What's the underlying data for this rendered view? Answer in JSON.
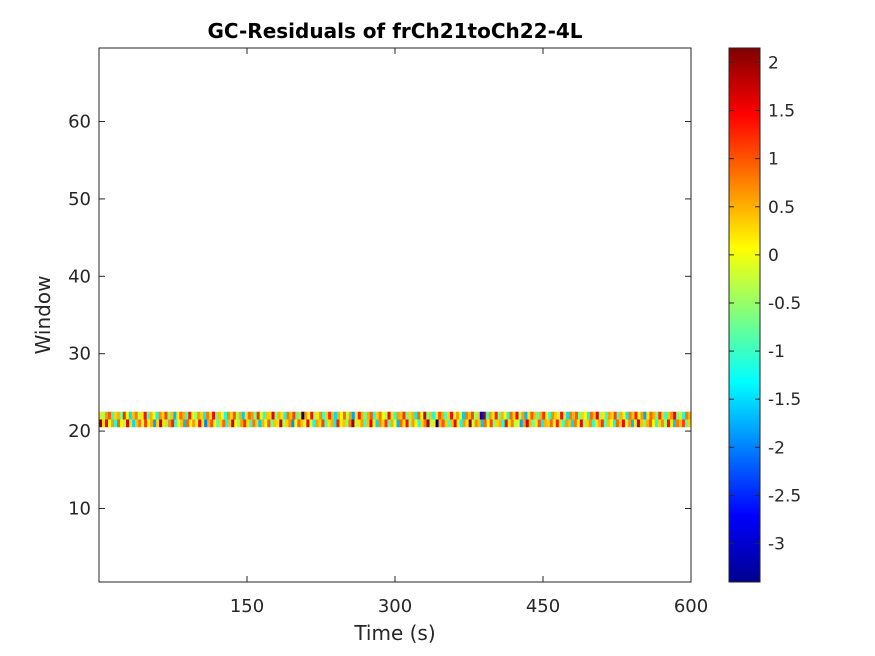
{
  "chart_data": {
    "type": "heatmap",
    "title": "GC-Residuals of frCh21toCh22-4L",
    "xlabel": "Time (s)",
    "ylabel": "Window",
    "xlim": [
      0,
      600
    ],
    "ylim": [
      0.5,
      69.5
    ],
    "xticks": [
      150,
      300,
      450,
      600
    ],
    "yticks": [
      10,
      20,
      30,
      40,
      50,
      60
    ],
    "grid": false,
    "colormap": "jet",
    "colorbar": {
      "location": "right",
      "clim": [
        -3.4,
        2.15
      ],
      "ticks": [
        2,
        1.5,
        1,
        0.5,
        0,
        -0.5,
        -1,
        -1.5,
        -2,
        -2.5,
        -3
      ]
    },
    "rows": [
      {
        "window": 21,
        "values": [
          2.1,
          0.3,
          1.5,
          0.0,
          0.6,
          -1.2,
          0.9,
          0.1,
          -0.4,
          1.6,
          0.2,
          -1.5,
          0.4,
          0.8,
          -0.2,
          1.1,
          0.0,
          0.5,
          -1.8,
          0.3,
          1.9,
          0.2,
          -0.6,
          0.7,
          1.3,
          -1.0,
          0.1,
          0.4,
          -1.7,
          0.9,
          0.0,
          0.6,
          -0.3,
          1.4,
          0.2,
          -2.0,
          0.5,
          1.0,
          0.1,
          -0.8,
          0.3,
          0.9,
          -1.3,
          0.4,
          1.7,
          0.0,
          -0.5,
          0.6,
          1.2,
          0.2,
          -1.1,
          0.8,
          0.3,
          -1.6,
          0.5,
          0.1,
          1.0,
          -0.7,
          0.4,
          0.2,
          1.8,
          -0.4,
          0.3,
          0.7,
          -1.9,
          0.1,
          0.9,
          0.4,
          -0.2,
          1.5,
          0.0,
          -1.2,
          0.6,
          0.3,
          1.1,
          -0.9,
          0.2,
          0.5,
          -1.4,
          1.3,
          0.1,
          0.4,
          -0.6,
          0.8,
          2.0,
          -0.3,
          0.2,
          0.6,
          -1.0,
          0.4,
          1.6,
          0.1,
          -1.5,
          0.7,
          0.3,
          1.2,
          -0.8,
          0.5,
          0.0,
          -1.7,
          0.9,
          0.2,
          1.4,
          -0.5,
          0.6,
          0.1,
          -1.1,
          0.3,
          0.8,
          1.9,
          -0.4,
          0.2,
          -3.4,
          0.5,
          1.0,
          0.3,
          -0.9,
          0.4,
          1.5,
          0.1,
          -1.3,
          0.6,
          0.2,
          2.1,
          -0.2,
          0.7,
          0.4,
          -1.6,
          0.9,
          0.0,
          1.1,
          -0.6,
          0.3,
          0.5,
          -1.2,
          1.4,
          0.2,
          0.8,
          -0.3,
          0.1,
          -1.8,
          0.6,
          1.7,
          0.4,
          -0.7,
          0.2,
          1.0,
          -1.4,
          0.5,
          0.3,
          0.9,
          -0.1,
          1.3,
          0.2,
          -1.0,
          0.6,
          0.4,
          -1.5,
          0.8,
          0.1,
          1.6,
          -0.5,
          0.3,
          0.7,
          -1.1,
          0.2,
          0.5,
          1.2,
          -0.8,
          0.4,
          0.1,
          -1.3,
          0.9,
          0.3,
          1.5,
          -0.2,
          0.6,
          -1.7,
          0.2,
          1.8,
          0.4,
          -0.6,
          0.5,
          1.0,
          0.1,
          -1.2,
          0.3,
          0.7,
          -0.4,
          1.4,
          0.2,
          -1.6,
          0.8,
          0.4,
          1.1,
          -0.9,
          0.3
        ]
      },
      {
        "window": 22,
        "values": [
          0.2,
          -0.4,
          0.6,
          1.0,
          -1.1,
          0.3,
          0.5,
          -0.7,
          1.2,
          0.1,
          -1.5,
          0.4,
          0.8,
          -0.3,
          0.2,
          1.4,
          -0.9,
          0.5,
          0.0,
          -1.3,
          0.7,
          0.3,
          1.1,
          -0.6,
          0.4,
          -1.7,
          0.2,
          0.9,
          0.5,
          -1.0,
          1.3,
          0.1,
          -0.5,
          0.6,
          0.3,
          -1.4,
          0.8,
          0.2,
          1.5,
          -0.8,
          0.4,
          0.0,
          -1.2,
          0.7,
          0.3,
          1.0,
          -0.4,
          0.5,
          -1.6,
          0.2,
          0.9,
          0.6,
          -0.7,
          1.2,
          0.1,
          -1.1,
          0.4,
          0.3,
          1.6,
          -0.6,
          0.5,
          0.2,
          -1.3,
          0.8,
          0.4,
          1.1,
          -0.9,
          0.3,
          -3.3,
          0.6,
          0.0,
          1.4,
          -0.5,
          0.2,
          0.7,
          -1.0,
          0.3,
          1.2,
          0.4,
          -1.5,
          0.5,
          0.1,
          0.9,
          -0.3,
          0.6,
          -1.8,
          0.2,
          1.3,
          0.4,
          -0.7,
          0.5,
          1.0,
          -1.2,
          0.3,
          0.8,
          0.1,
          -0.4,
          1.5,
          0.2,
          -1.1,
          0.6,
          0.4,
          1.2,
          -0.8,
          0.3,
          0.5,
          -1.4,
          0.9,
          0.1,
          1.7,
          -0.6,
          0.4,
          -1.3,
          0.2,
          1.0,
          0.5,
          -0.9,
          0.3,
          1.4,
          -0.2,
          0.6,
          0.1,
          -1.6,
          0.8,
          0.4,
          1.1,
          -0.5,
          0.3,
          -3.0,
          2.0,
          -1.0,
          0.6,
          0.2,
          1.3,
          -0.7,
          0.5,
          0.1,
          -1.2,
          0.9,
          0.3,
          1.5,
          -0.4,
          0.6,
          -1.7,
          0.2,
          1.0,
          0.4,
          -0.8,
          0.5,
          1.2,
          0.1,
          -1.1,
          0.7,
          0.3,
          -0.3,
          1.4,
          0.2,
          -1.5,
          0.8,
          0.5,
          1.0,
          -0.6,
          0.3,
          0.1,
          -1.3,
          0.9,
          0.4,
          1.6,
          -0.5,
          0.2,
          -1.0,
          0.6,
          0.3,
          1.1,
          -0.9,
          0.5,
          0.1,
          -1.4,
          0.8,
          0.4,
          1.3,
          -0.2,
          0.6,
          -1.8,
          0.2,
          0.9,
          0.5,
          -0.7,
          1.2,
          0.3,
          -1.1,
          0.4,
          0.7,
          1.5,
          -0.6,
          0.2,
          -1.2,
          0.8,
          0.5
        ]
      }
    ]
  }
}
